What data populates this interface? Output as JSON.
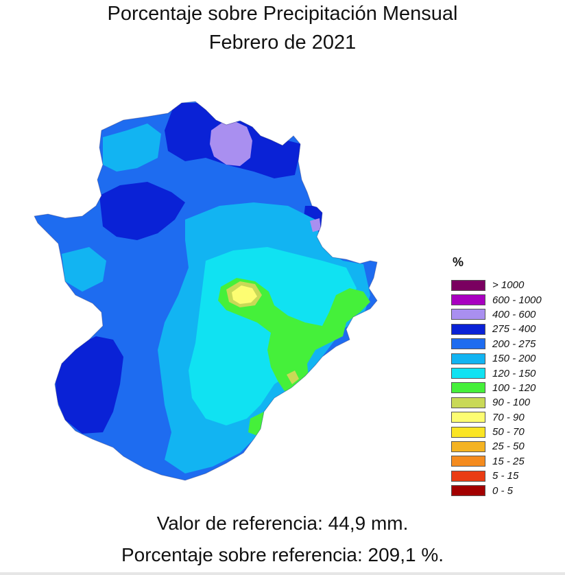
{
  "title": {
    "line1": "Porcentaje sobre Precipitación Mensual",
    "line2": "Febrero de 2021"
  },
  "legend": {
    "title": "%",
    "items": [
      {
        "label": "> 1000",
        "color": "#7a0060"
      },
      {
        "label": "600 - 1000",
        "color": "#a800c0"
      },
      {
        "label": "400 - 600",
        "color": "#a98ff0"
      },
      {
        "label": "275 - 400",
        "color": "#0a22d6"
      },
      {
        "label": "200 - 275",
        "color": "#1e6cf0"
      },
      {
        "label": "150 - 200",
        "color": "#12b4f2"
      },
      {
        "label": "120 - 150",
        "color": "#10e2f2"
      },
      {
        "label": "100 - 120",
        "color": "#45f03a"
      },
      {
        "label": "90 - 100",
        "color": "#c9d957"
      },
      {
        "label": "70 - 90",
        "color": "#fdfd72"
      },
      {
        "label": "50 - 70",
        "color": "#fbe524"
      },
      {
        "label": "25 - 50",
        "color": "#f4b322"
      },
      {
        "label": "15 - 25",
        "color": "#f48b1f"
      },
      {
        "label": "5 - 15",
        "color": "#ea3c14"
      },
      {
        "label": "0 - 5",
        "color": "#a30000"
      }
    ]
  },
  "footer": {
    "reference_value": "Valor de referencia: 44,9 mm.",
    "reference_percentage": "Porcentaje sobre referencia: 209,1 %."
  }
}
